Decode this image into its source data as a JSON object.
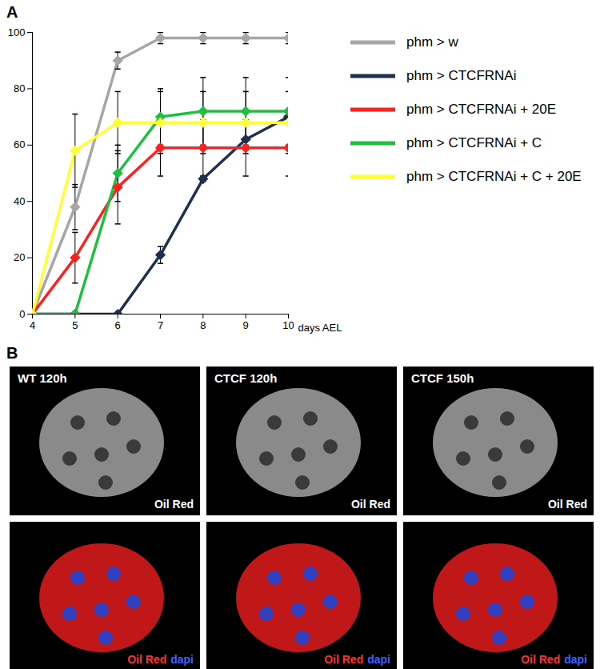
{
  "chart_data": {
    "type": "line",
    "title": "A",
    "x": [
      4,
      5,
      6,
      7,
      8,
      9,
      10
    ],
    "xlabel": "days AEL",
    "xlim": [
      4,
      10
    ],
    "xticks": [
      4,
      5,
      6,
      7,
      8,
      9,
      10
    ],
    "ylim": [
      0,
      100
    ],
    "yticks": [
      0,
      20,
      40,
      60,
      80,
      100
    ],
    "grid": false,
    "legend": "right",
    "marker": "diamond",
    "line_style": "solid",
    "series": [
      {
        "name": "phm > w",
        "color": "#a6a6a6",
        "values": [
          0,
          38,
          90,
          98,
          98,
          98,
          98
        ],
        "error": [
          null,
          8,
          3,
          2,
          2,
          2,
          2
        ]
      },
      {
        "name": "phm > CTCFRNAi",
        "color": "#1f2f4f",
        "values": [
          0,
          0,
          0,
          21,
          48,
          62,
          70
        ],
        "error": [
          null,
          null,
          null,
          3,
          1,
          null,
          null
        ]
      },
      {
        "name": "phm > CTCFRNAi + 20E",
        "color": "#ff2020",
        "values": [
          0,
          20,
          45,
          59,
          59,
          59,
          59
        ],
        "error": [
          null,
          9,
          13,
          10,
          10,
          10,
          10
        ]
      },
      {
        "name": "phm > CTCFRNAi + C",
        "color": "#1fbf3f",
        "values": [
          0,
          0,
          50,
          70,
          72,
          72,
          72
        ],
        "error": [
          null,
          null,
          10,
          10,
          12,
          12,
          12
        ]
      },
      {
        "name": "phm > CTCFRNAi + C + 20E",
        "color": "#ffff33",
        "values": [
          0,
          58,
          68,
          68,
          68,
          68,
          68
        ],
        "error": [
          null,
          13,
          11,
          11,
          11,
          11,
          11
        ]
      }
    ]
  },
  "panel_b": {
    "label": "B",
    "top_row": [
      {
        "title": "WT 120h",
        "caption": "Oil Red"
      },
      {
        "title": "CTCF 120h",
        "caption": "Oil Red"
      },
      {
        "title": "CTCF 150h",
        "caption": "Oil Red"
      }
    ],
    "bottom_row": [
      {
        "captions": [
          "Oil Red",
          "dapi"
        ]
      },
      {
        "captions": [
          "Oil Red",
          "dapi"
        ]
      },
      {
        "captions": [
          "Oil Red",
          "dapi"
        ]
      }
    ],
    "caption_colors": [
      "#ff3030",
      "#4060ff"
    ]
  }
}
